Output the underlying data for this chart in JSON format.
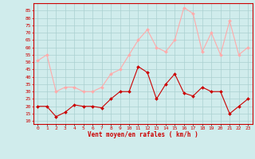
{
  "x": [
    0,
    1,
    2,
    3,
    4,
    5,
    6,
    7,
    8,
    9,
    10,
    11,
    12,
    13,
    14,
    15,
    16,
    17,
    18,
    19,
    20,
    21,
    22,
    23
  ],
  "wind_avg": [
    20,
    20,
    13,
    16,
    21,
    20,
    20,
    19,
    25,
    30,
    30,
    47,
    43,
    25,
    35,
    42,
    29,
    27,
    33,
    30,
    30,
    15,
    20,
    25
  ],
  "wind_gust": [
    51,
    55,
    30,
    33,
    33,
    30,
    30,
    33,
    42,
    45,
    55,
    65,
    72,
    60,
    57,
    65,
    87,
    83,
    57,
    70,
    55,
    78,
    55,
    60
  ],
  "avg_color": "#cc0000",
  "gust_color": "#ffaaaa",
  "bg_color": "#d0ecec",
  "grid_color": "#aad0d0",
  "xlabel": "Vent moyen/en rafales ( km/h )",
  "xlabel_color": "#cc0000",
  "yticks": [
    10,
    15,
    20,
    25,
    30,
    35,
    40,
    45,
    50,
    55,
    60,
    65,
    70,
    75,
    80,
    85
  ],
  "ylim": [
    8,
    90
  ],
  "xlim": [
    -0.5,
    23.5
  ]
}
